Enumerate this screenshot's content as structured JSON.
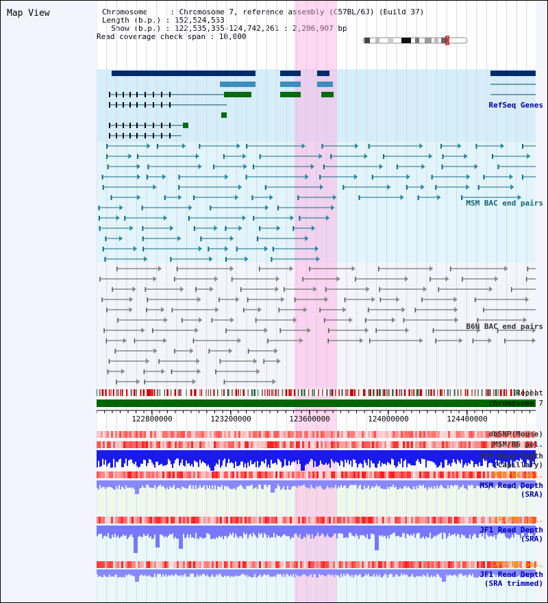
{
  "title": "Map View",
  "info": {
    "chromosome_line": "Chromosome     : Chromosome 7, reference assembly (C57BL/6J) (Build 37)",
    "length_line": "Length (b.p.) : 152,524,553",
    "show_line": "  Show (b.p.) : 122,535,355-124,742,261 : 2,206,907 bp",
    "coverage_line": "Read coverage check span : 10,000"
  },
  "tracks": {
    "refseq": "RefSeq Genes",
    "msm_bac": "MSM BAC end pairs",
    "b6n_bac": "B6N BAC end pairs",
    "repeat": "Repeat",
    "chromosome": "chromosome 7",
    "dbsnp": "dbSNP(Mouse)",
    "msm_b6_pol": "MSM/B6 pol.",
    "msm_depth_cap_1": "MSM Read Depth",
    "msm_depth_cap_2": "(Capillary)",
    "msm_b6_pol_2": "MSM/B6 pol.",
    "msm_depth_sra_1": "MSM Read Depth",
    "msm_depth_sra_2": "(SRA)",
    "jf1_b6_pol": "JF1/B6 pol.",
    "jf1_depth_sra_1": "JF1 Read Depth",
    "jf1_depth_sra_2": "(SRA)",
    "jf1_b6_pol_2": "JF1/B6 pol.",
    "jf1_depth_trim_1": "JF1 Read Depth",
    "jf1_depth_trim_2": "(SRA trimmed)"
  },
  "axis": {
    "ticks": [
      "122800000",
      "123200000",
      "123600000",
      "124000000",
      "124400000"
    ]
  },
  "colors": {
    "refseq_bg": "#d6eefa",
    "msm_bg": "#e2f5fb",
    "b6n_bg": "#f4f4fb",
    "highlight": "#ffaae1",
    "gene_navy": "#002b6b",
    "gene_blue": "#3a8fc0",
    "gene_green": "#0a6a10",
    "chromosome_bar": "#006600",
    "depth_blue": "#0000ee",
    "depth_light": "#8888ff"
  }
}
